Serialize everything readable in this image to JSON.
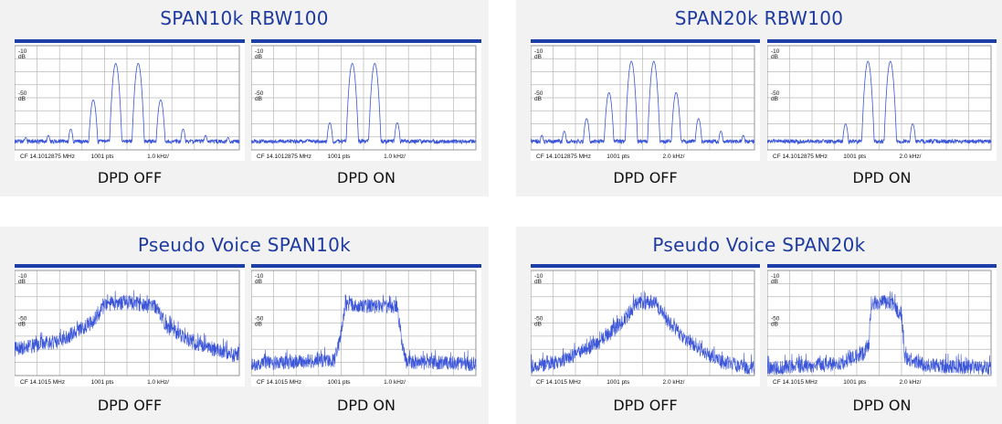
{
  "colors": {
    "title": "#1d3a9e",
    "bar": "#1f3fa8",
    "trace": "#3b55d8",
    "grid": "#b9b9b9",
    "panel_bg": "#f2f2f2"
  },
  "panels": [
    {
      "title": "SPAN10k  RBW100",
      "plots": [
        {
          "caption": "DPD OFF",
          "y_top": "-10",
          "y_mid": "-50",
          "y_unit": "dB",
          "cf": "CF 14.1012875 MHz",
          "pts": "1001 pts",
          "div": "1.0 kHz/",
          "kind": "tones",
          "tones": [
            -4.5,
            -3.5,
            -2.5,
            -1.5,
            -0.5,
            0.5,
            1.5,
            2.5,
            3.5,
            4.5
          ],
          "peaks": [
            -98,
            -96,
            -90,
            -62,
            -27,
            -27,
            -62,
            -90,
            -96,
            -98
          ]
        },
        {
          "caption": "DPD ON",
          "y_top": "-10",
          "y_mid": "-50",
          "y_unit": "dB",
          "cf": "CF 14.1012875 MHz",
          "pts": "1001 pts",
          "div": "1.0 kHz/",
          "kind": "tones",
          "tones": [
            -2.5,
            -1.5,
            -0.5,
            0.5,
            1.5,
            2.5
          ],
          "peaks": [
            -100,
            -84,
            -27,
            -27,
            -84,
            -100
          ]
        }
      ]
    },
    {
      "title": "SPAN20k  RBW100",
      "plots": [
        {
          "caption": "DPD OFF",
          "y_top": "-10",
          "y_mid": "-50",
          "y_unit": "dB",
          "cf": "CF 14.1012875 MHz",
          "pts": "1001 pts",
          "div": "2.0 kHz/",
          "kind": "tones",
          "tones": [
            -4.5,
            -3.5,
            -2.5,
            -1.5,
            -0.5,
            0.5,
            1.5,
            2.5,
            3.5,
            4.5
          ],
          "peaks": [
            -96,
            -92,
            -80,
            -55,
            -25,
            -25,
            -55,
            -80,
            -92,
            -96
          ]
        },
        {
          "caption": "DPD ON",
          "y_top": "-10",
          "y_mid": "-50",
          "y_unit": "dB",
          "cf": "CF 14.1012875 MHz",
          "pts": "1001 pts",
          "div": "2.0 kHz/",
          "kind": "tones",
          "tones": [
            -2.5,
            -1.5,
            -0.5,
            0.5,
            1.5,
            2.5
          ],
          "peaks": [
            -100,
            -85,
            -25,
            -25,
            -85,
            -100
          ]
        }
      ]
    },
    {
      "title": "Pseudo Voice  SPAN10k",
      "plots": [
        {
          "caption": "DPD OFF",
          "y_top": "-10",
          "y_mid": "-50",
          "y_unit": "dB",
          "cf": "CF 14.1015 MHz",
          "pts": "1001 pts",
          "div": "1.0 kHz/",
          "kind": "voice",
          "envelope": [
            [
              -5,
              -78
            ],
            [
              -3,
              -70
            ],
            [
              -1.5,
              -52
            ],
            [
              -1,
              -36
            ],
            [
              0,
              -33
            ],
            [
              1.3,
              -38
            ],
            [
              1.8,
              -57
            ],
            [
              3,
              -72
            ],
            [
              5,
              -85
            ]
          ]
        },
        {
          "caption": "DPD ON",
          "y_top": "-10",
          "y_mid": "-50",
          "y_unit": "dB",
          "cf": "CF 14.1015 MHz",
          "pts": "1001 pts",
          "div": "1.0 kHz/",
          "kind": "voice",
          "envelope": [
            [
              -5,
              -92
            ],
            [
              -1.3,
              -88
            ],
            [
              -1.05,
              -70
            ],
            [
              -0.8,
              -35
            ],
            [
              0.5,
              -37
            ],
            [
              1.5,
              -38
            ],
            [
              1.7,
              -70
            ],
            [
              1.9,
              -90
            ],
            [
              5,
              -92
            ]
          ]
        }
      ]
    },
    {
      "title": "Pseudo Voice  SPAN20k",
      "plots": [
        {
          "caption": "DPD OFF",
          "y_top": "-10",
          "y_mid": "-50",
          "y_unit": "dB",
          "cf": "CF 14.1015 MHz",
          "pts": "1001 pts",
          "div": "2.0 kHz/",
          "kind": "voice",
          "envelope": [
            [
              -5,
              -95
            ],
            [
              -3.5,
              -88
            ],
            [
              -2,
              -72
            ],
            [
              -1,
              -55
            ],
            [
              -0.3,
              -35
            ],
            [
              0.5,
              -33
            ],
            [
              1,
              -48
            ],
            [
              2,
              -70
            ],
            [
              3.5,
              -90
            ],
            [
              5,
              -96
            ]
          ]
        },
        {
          "caption": "DPD ON",
          "y_top": "-10",
          "y_mid": "-50",
          "y_unit": "dB",
          "cf": "CF 14.1015 MHz",
          "pts": "1001 pts",
          "div": "2.0 kHz/",
          "kind": "voice",
          "envelope": [
            [
              -5,
              -96
            ],
            [
              -1.8,
              -92
            ],
            [
              -0.7,
              -82
            ],
            [
              -0.45,
              -72
            ],
            [
              -0.35,
              -34
            ],
            [
              0.5,
              -33
            ],
            [
              1,
              -45
            ],
            [
              1.15,
              -85
            ],
            [
              2,
              -93
            ],
            [
              5,
              -96
            ]
          ]
        }
      ]
    }
  ],
  "chart_data": [
    {
      "type": "line",
      "title": "SPAN10k  RBW100",
      "series": [
        {
          "name": "DPD OFF",
          "x": [
            -4.5,
            -3.5,
            -2.5,
            -1.5,
            -0.5,
            0.5,
            1.5,
            2.5,
            3.5,
            4.5
          ],
          "values": [
            -98,
            -96,
            -90,
            -62,
            -27,
            -27,
            -62,
            -90,
            -96,
            -98
          ]
        },
        {
          "name": "DPD ON",
          "x": [
            -2.5,
            -1.5,
            -0.5,
            0.5,
            1.5,
            2.5
          ],
          "values": [
            -100,
            -84,
            -27,
            -27,
            -84,
            -100
          ]
        }
      ],
      "xlabel": "1.0 kHz/",
      "ylim": [
        -110,
        -10
      ]
    },
    {
      "type": "line",
      "title": "SPAN20k  RBW100",
      "series": [
        {
          "name": "DPD OFF",
          "x": [
            -4.5,
            -3.5,
            -2.5,
            -1.5,
            -0.5,
            0.5,
            1.5,
            2.5,
            3.5,
            4.5
          ],
          "values": [
            -96,
            -92,
            -80,
            -55,
            -25,
            -25,
            -55,
            -80,
            -92,
            -96
          ]
        },
        {
          "name": "DPD ON",
          "x": [
            -2.5,
            -1.5,
            -0.5,
            0.5,
            1.5,
            2.5
          ],
          "values": [
            -100,
            -85,
            -25,
            -25,
            -85,
            -100
          ]
        }
      ],
      "xlabel": "2.0 kHz/",
      "ylim": [
        -110,
        -10
      ]
    },
    {
      "type": "line",
      "title": "Pseudo Voice  SPAN10k",
      "series": [
        {
          "name": "DPD OFF",
          "x": [
            -5,
            -3,
            -1.5,
            -1,
            0,
            1.3,
            1.8,
            3,
            5
          ],
          "values": [
            -78,
            -70,
            -52,
            -36,
            -33,
            -38,
            -57,
            -72,
            -85
          ]
        },
        {
          "name": "DPD ON",
          "x": [
            -5,
            -1.3,
            -1.05,
            -0.8,
            0.5,
            1.5,
            1.7,
            1.9,
            5
          ],
          "values": [
            -92,
            -88,
            -70,
            -35,
            -37,
            -38,
            -70,
            -90,
            -92
          ]
        }
      ],
      "xlabel": "1.0 kHz/",
      "ylim": [
        -110,
        -10
      ]
    },
    {
      "type": "line",
      "title": "Pseudo Voice  SPAN20k",
      "series": [
        {
          "name": "DPD OFF",
          "x": [
            -5,
            -3.5,
            -2,
            -1,
            -0.3,
            0.5,
            1,
            2,
            3.5,
            5
          ],
          "values": [
            -95,
            -88,
            -72,
            -55,
            -35,
            -33,
            -48,
            -70,
            -90,
            -96
          ]
        },
        {
          "name": "DPD ON",
          "x": [
            -5,
            -1.8,
            -0.7,
            -0.45,
            -0.35,
            0.5,
            1,
            1.15,
            2,
            5
          ],
          "values": [
            -96,
            -92,
            -82,
            -72,
            -34,
            -33,
            -45,
            -85,
            -93,
            -96
          ]
        }
      ],
      "xlabel": "2.0 kHz/",
      "ylim": [
        -110,
        -10
      ]
    }
  ]
}
